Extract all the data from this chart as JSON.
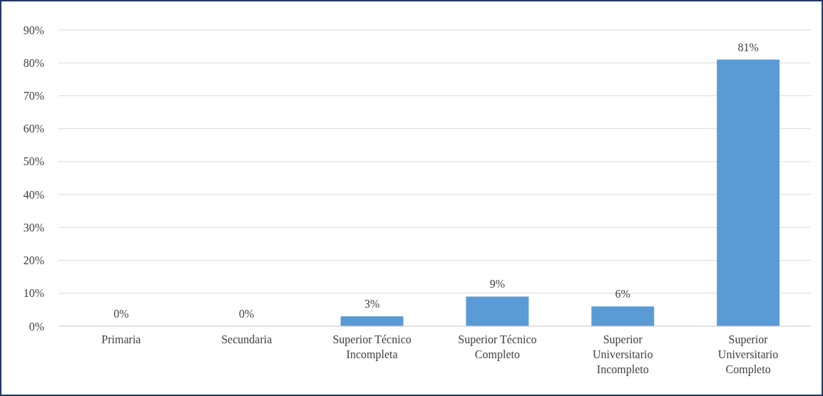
{
  "chart_data": {
    "type": "bar",
    "categories": [
      "Primaria",
      "Secundaria",
      "Superior Técnico Incompleta",
      "Superior Técnico Completo",
      "Superior Universitario Incompleto",
      "Superior Universitario Completo"
    ],
    "values": [
      0,
      0,
      3,
      9,
      6,
      81
    ],
    "value_labels": [
      "0%",
      "0%",
      "3%",
      "9%",
      "6%",
      "81%"
    ],
    "color": "#5b9bd5",
    "ylim": [
      0,
      90
    ],
    "yticks": [
      {
        "value": 0,
        "label": "0%"
      },
      {
        "value": 10,
        "label": "10%"
      },
      {
        "value": 20,
        "label": "20%"
      },
      {
        "value": 30,
        "label": "30%"
      },
      {
        "value": 40,
        "label": "40%"
      },
      {
        "value": 50,
        "label": "50%"
      },
      {
        "value": 60,
        "label": "60%"
      },
      {
        "value": 70,
        "label": "70%"
      },
      {
        "value": 80,
        "label": "80%"
      },
      {
        "value": 90,
        "label": "90%"
      }
    ],
    "grid": "y"
  }
}
